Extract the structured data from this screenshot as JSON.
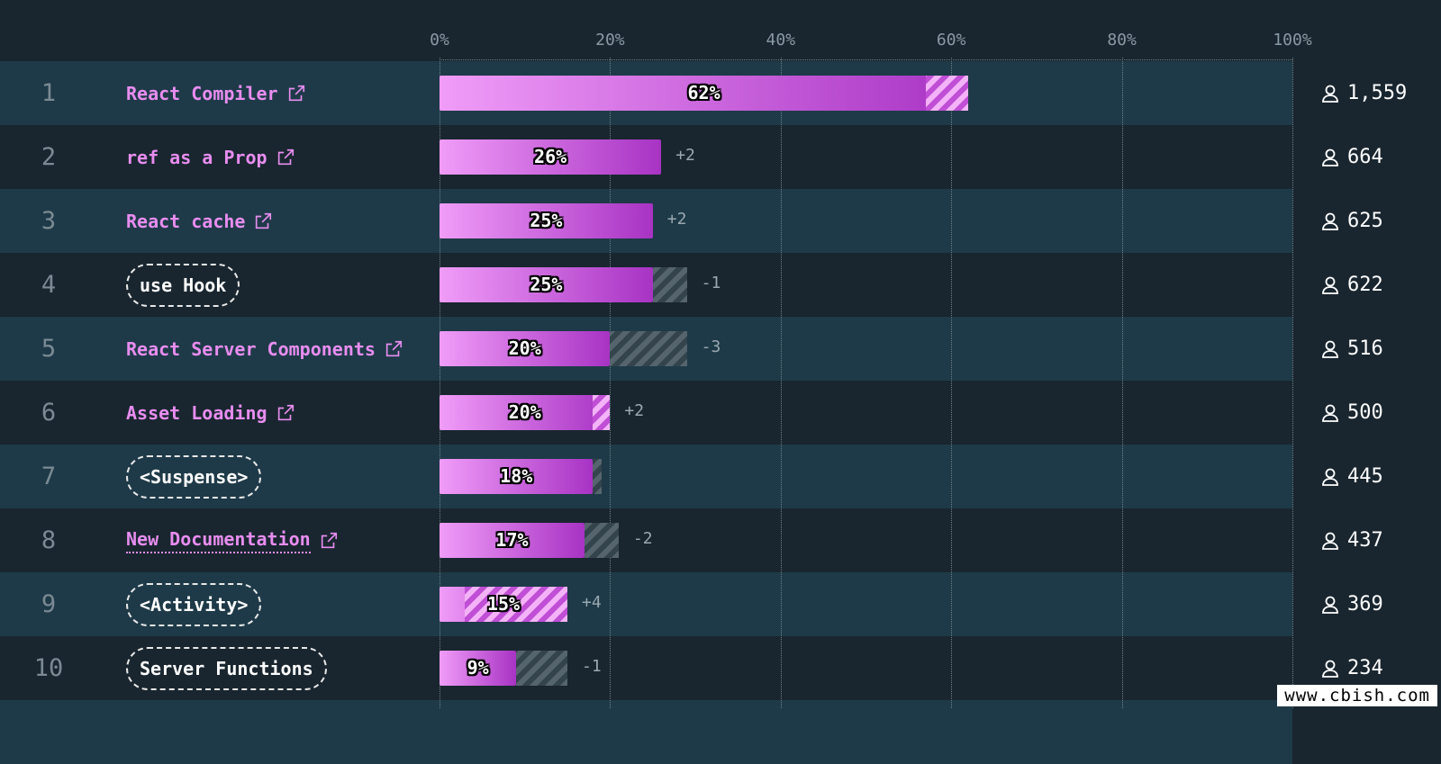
{
  "chart_data": {
    "type": "bar",
    "orientation": "horizontal",
    "axis": {
      "ticks": [
        "0%",
        "20%",
        "40%",
        "60%",
        "80%",
        "100%"
      ],
      "xlim": [
        0,
        100
      ]
    },
    "rows": [
      {
        "rank": "1",
        "name": "React Compiler",
        "style": "link",
        "underlined": false,
        "value": 62,
        "label": "62%",
        "previous": 57,
        "delta": "",
        "count": "1,559"
      },
      {
        "rank": "2",
        "name": "ref as a Prop",
        "style": "link",
        "underlined": false,
        "value": 26,
        "label": "26%",
        "previous": 26,
        "delta": "+2",
        "count": "664"
      },
      {
        "rank": "3",
        "name": "React cache",
        "style": "link",
        "underlined": false,
        "value": 25,
        "label": "25%",
        "previous": 25,
        "delta": "+2",
        "count": "625"
      },
      {
        "rank": "4",
        "name": "use Hook",
        "style": "pill",
        "underlined": false,
        "value": 25,
        "label": "25%",
        "previous": 29,
        "delta": "-1",
        "count": "622"
      },
      {
        "rank": "5",
        "name": "React Server Components",
        "style": "link",
        "underlined": false,
        "value": 20,
        "label": "20%",
        "previous": 29,
        "delta": "-3",
        "count": "516"
      },
      {
        "rank": "6",
        "name": "Asset Loading",
        "style": "link",
        "underlined": false,
        "value": 20,
        "label": "20%",
        "previous": 18,
        "delta": "+2",
        "count": "500"
      },
      {
        "rank": "7",
        "name": "<Suspense>",
        "style": "pill",
        "underlined": false,
        "value": 18,
        "label": "18%",
        "previous": 19,
        "delta": "",
        "count": "445"
      },
      {
        "rank": "8",
        "name": "New Documentation",
        "style": "link",
        "underlined": true,
        "value": 17,
        "label": "17%",
        "previous": 21,
        "delta": "-2",
        "count": "437"
      },
      {
        "rank": "9",
        "name": "<Activity>",
        "style": "pill",
        "underlined": false,
        "value": 15,
        "label": "15%",
        "previous": 3,
        "delta": "+4",
        "count": "369"
      },
      {
        "rank": "10",
        "name": "Server Functions",
        "style": "pill",
        "underlined": false,
        "value": 9,
        "label": "9%",
        "previous": 15,
        "delta": "-1",
        "count": "234"
      }
    ],
    "colors": {
      "bar_start": "#f09cf8",
      "bar_end": "#a833c4",
      "hatch_dark": "#56656d",
      "hatch_pink": "#f4b3f8",
      "link": "#e88df0"
    }
  },
  "watermark": "www.cbish.com"
}
